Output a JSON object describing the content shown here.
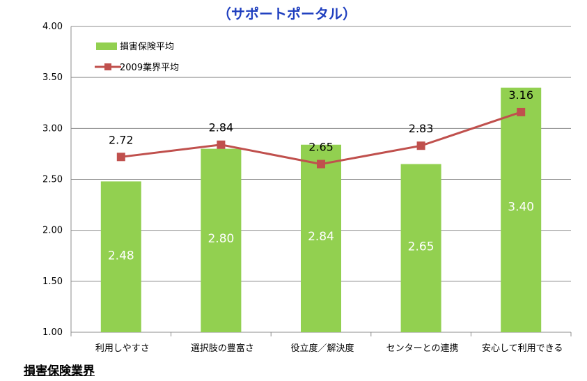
{
  "chart_data": {
    "type": "bar",
    "title": "（サポートポータル）",
    "categories": [
      "利用しやすさ",
      "選択肢の豊富さ",
      "役立度／解決度",
      "センターとの連携",
      "安心して利用できる"
    ],
    "ylim": [
      1.0,
      4.0
    ],
    "yticks": [
      "1.00",
      "1.50",
      "2.00",
      "2.50",
      "3.00",
      "3.50",
      "4.00"
    ],
    "series": [
      {
        "name": "損害保険平均",
        "type": "bar",
        "color": "#92d050",
        "values": [
          2.48,
          2.8,
          2.84,
          2.65,
          3.4
        ],
        "labels": [
          "2.48",
          "2.80",
          "2.84",
          "2.65",
          "3.40"
        ]
      },
      {
        "name": "2009業界平均",
        "type": "line",
        "color": "#c0504d",
        "values": [
          2.72,
          2.84,
          2.65,
          2.83,
          3.16
        ],
        "labels": [
          "2.72",
          "2.84",
          "2.65",
          "2.83",
          "3.16"
        ]
      }
    ],
    "legend_position": "top-left",
    "grid": true
  },
  "footer": {
    "title": "損害保険業界"
  },
  "colors": {
    "bar": "#92d050",
    "line": "#c0504d",
    "title": "#1f3fbf",
    "grid": "#8c8c8c"
  }
}
